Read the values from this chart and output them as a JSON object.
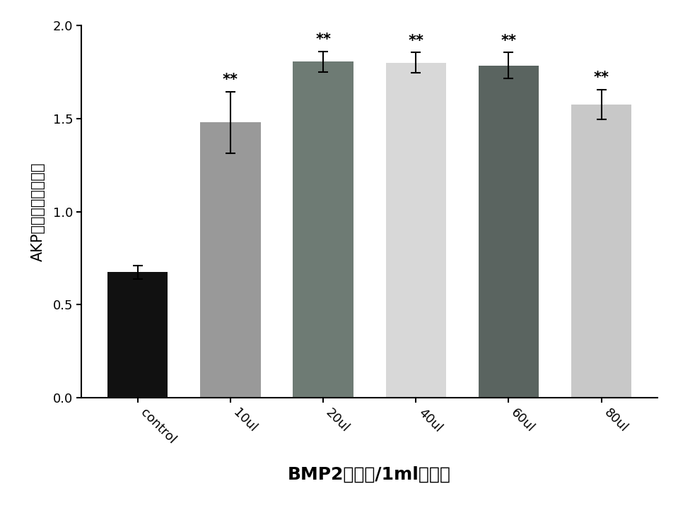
{
  "categories": [
    "control",
    "10ul",
    "20ul",
    "40ul",
    "60ul",
    "80ul"
  ],
  "values": [
    0.675,
    1.48,
    1.805,
    1.8,
    1.785,
    1.575
  ],
  "errors": [
    0.035,
    0.165,
    0.055,
    0.055,
    0.07,
    0.08
  ],
  "bar_colors": [
    "#111111",
    "#999999",
    "#6e7b74",
    "#d8d8d8",
    "#5a6460",
    "#c8c8c8"
  ],
  "significance": [
    false,
    true,
    true,
    true,
    true,
    true
  ],
  "sig_label": "**",
  "ylabel": "AKP活性（金氏单位）",
  "xlabel": "BMP2加样量/1ml培养基",
  "ylim": [
    0.0,
    2.0
  ],
  "yticks": [
    0.0,
    0.5,
    1.0,
    1.5,
    2.0
  ],
  "xlabel_fontsize": 18,
  "ylabel_fontsize": 15,
  "tick_fontsize": 13,
  "sig_fontsize": 15,
  "background_color": "#ffffff",
  "bar_width": 0.65,
  "figsize": [
    9.59,
    7.22
  ],
  "dpi": 100
}
